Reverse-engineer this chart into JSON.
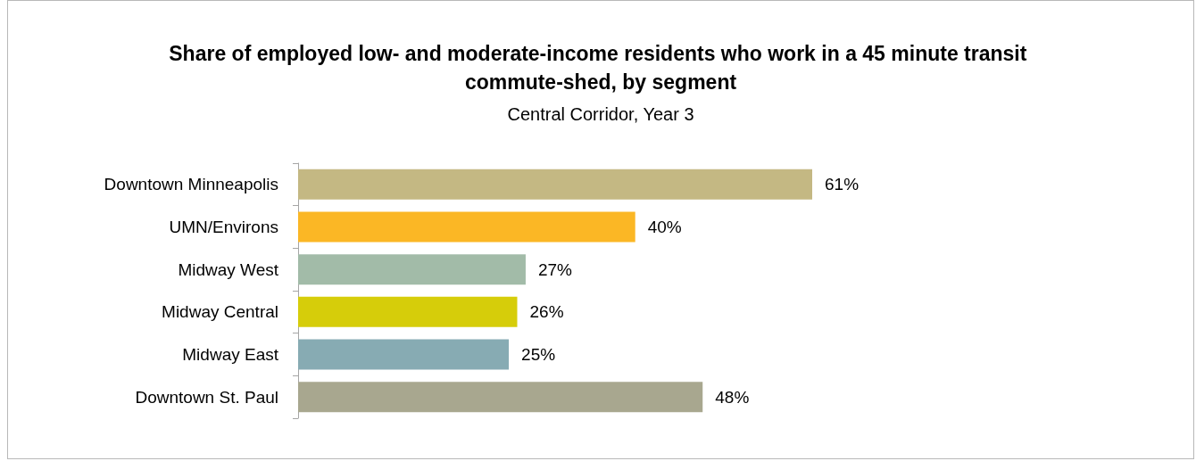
{
  "chart_data": {
    "type": "bar",
    "orientation": "horizontal",
    "title": "Share of employed low- and moderate-income residents who work in a 45 minute transit commute-shed, by segment",
    "subtitle": "Central Corridor, Year 3",
    "categories": [
      "Downtown Minneapolis",
      "UMN/Environs",
      "Midway West",
      "Midway Central",
      "Midway East",
      "Downtown St. Paul"
    ],
    "values": [
      61,
      40,
      27,
      26,
      25,
      48
    ],
    "colors": [
      "#c4b883",
      "#fbb725",
      "#a2bba8",
      "#d6cd0a",
      "#87abb3",
      "#a8a78f"
    ],
    "value_labels": [
      "61%",
      "40%",
      "27%",
      "26%",
      "25%",
      "48%"
    ],
    "tick_labels": "y"
  }
}
